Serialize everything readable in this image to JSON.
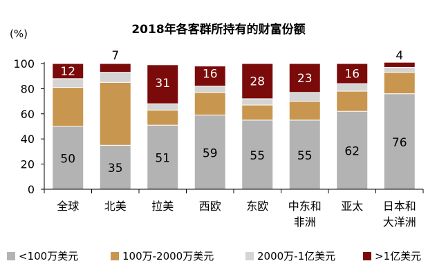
{
  "chart_data": {
    "type": "bar",
    "stacked": true,
    "title": "2018年各客群所持有的财富份额",
    "ylabel": "(%)",
    "ylim": [
      0,
      100
    ],
    "yticks": [
      0,
      20,
      40,
      60,
      80,
      100
    ],
    "categories": [
      "全球",
      "北美",
      "拉美",
      "西欧",
      "东欧",
      "中东和非洲",
      "亚太",
      "日本和大洋洲"
    ],
    "category_lines": [
      [
        "全球"
      ],
      [
        "北美"
      ],
      [
        "拉美"
      ],
      [
        "西欧"
      ],
      [
        "东欧"
      ],
      [
        "中东和",
        "非洲"
      ],
      [
        "亚太"
      ],
      [
        "日本和",
        "大洋洲"
      ]
    ],
    "series": [
      {
        "name": "<100万美元",
        "color": "#b3b3b3",
        "values": [
          50,
          35,
          51,
          59,
          55,
          55,
          62,
          76
        ]
      },
      {
        "name": "100万-2000万美元",
        "color": "#c8964e",
        "values": [
          31,
          50,
          12,
          18,
          12,
          15,
          16,
          17
        ]
      },
      {
        "name": "2000万-1亿美元",
        "color": "#d4d4d4",
        "values": [
          7,
          8,
          5,
          5,
          5,
          7,
          6,
          4
        ]
      },
      {
        "name": ">1亿美元",
        "color": "#7b0a0a",
        "values": [
          12,
          7,
          31,
          16,
          28,
          23,
          16,
          4
        ]
      }
    ],
    "data_labels": {
      "bottom": [
        "50",
        "35",
        "51",
        "59",
        "55",
        "55",
        "62",
        "76"
      ],
      "top": [
        "12",
        "7",
        "31",
        "16",
        "28",
        "23",
        "16",
        "4"
      ],
      "top_inside": [
        true,
        false,
        true,
        true,
        true,
        true,
        true,
        false
      ]
    },
    "legend": "bottom",
    "grid": false
  }
}
